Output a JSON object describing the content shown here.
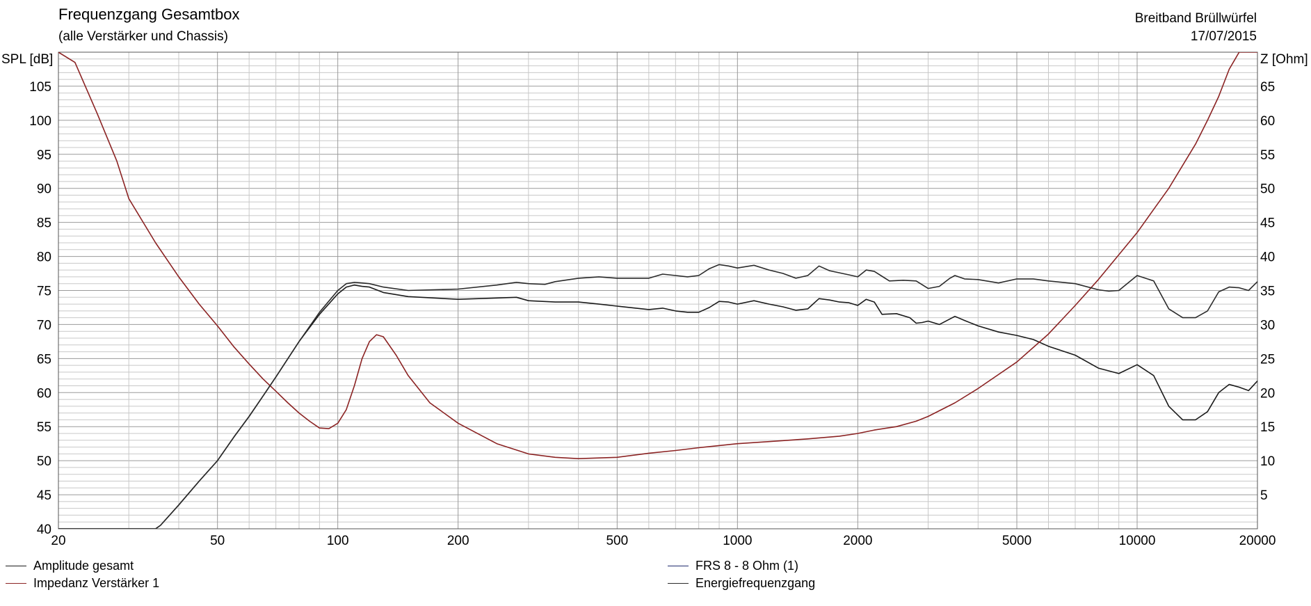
{
  "header": {
    "title": "Frequenzgang Gesamtbox",
    "subtitle": "(alle Verstärker und Chassis)",
    "project": "Breitband Brüllwürfel",
    "date": "17/07/2015"
  },
  "colors": {
    "amplitude": "#1a1a1a",
    "impedance": "#8b2323",
    "frs": "#1e2a6e",
    "energy": "#2a2a2a",
    "grid_major": "#9a9a9a",
    "grid_minor": "#c8c8c8"
  },
  "chart_data": {
    "type": "line",
    "title": "Frequenzgang Gesamtbox",
    "subtitle": "(alle Verstärker und Chassis)",
    "xlabel": "",
    "ylabel": "SPL [dB]",
    "y2label": "Z [Ohm]",
    "xscale": "log",
    "xlim": [
      20,
      20000
    ],
    "ylim": [
      40,
      110
    ],
    "y2lim": [
      0,
      70
    ],
    "grid": true,
    "legend_position": "bottom",
    "x_ticks": [
      "20",
      "50",
      "100",
      "200",
      "500",
      "1000",
      "2000",
      "5000",
      "10000",
      "20000"
    ],
    "y_ticks": [
      "40",
      "45",
      "50",
      "55",
      "60",
      "65",
      "70",
      "75",
      "80",
      "85",
      "90",
      "95",
      "100",
      "105"
    ],
    "y2_ticks": [
      "5",
      "10",
      "15",
      "20",
      "25",
      "30",
      "35",
      "40",
      "45",
      "50",
      "55",
      "60",
      "65"
    ],
    "series": [
      {
        "name": "Amplitude gesamt",
        "axis": "left",
        "x": [
          20,
          35,
          36,
          40,
          45,
          50,
          55,
          60,
          65,
          70,
          80,
          90,
          100,
          105,
          110,
          115,
          120,
          130,
          150,
          200,
          250,
          280,
          300,
          350,
          400,
          450,
          500,
          600,
          650,
          700,
          750,
          800,
          850,
          900,
          950,
          1000,
          1100,
          1200,
          1300,
          1400,
          1500,
          1600,
          1700,
          1800,
          1900,
          2000,
          2100,
          2200,
          2300,
          2500,
          2700,
          2800,
          2900,
          3000,
          3200,
          3500,
          3700,
          4000,
          4500,
          5000,
          5500,
          6000,
          7000,
          8000,
          9000,
          10000,
          11000,
          12000,
          13000,
          14000,
          15000,
          16000,
          17000,
          18000,
          19000,
          20000
        ],
        "y": [
          40,
          40,
          40.5,
          43.5,
          47,
          50,
          53.5,
          56.5,
          59.5,
          62.3,
          67.5,
          71.5,
          74.5,
          75.5,
          75.8,
          75.6,
          75.5,
          74.7,
          74.1,
          73.7,
          73.9,
          74.0,
          73.5,
          73.3,
          73.3,
          73.0,
          72.7,
          72.2,
          72.4,
          72.0,
          71.8,
          71.8,
          72.5,
          73.4,
          73.3,
          73.0,
          73.5,
          73.0,
          72.6,
          72.1,
          72.3,
          73.8,
          73.6,
          73.3,
          73.2,
          72.8,
          73.7,
          73.3,
          71.5,
          71.6,
          71.0,
          70.2,
          70.3,
          70.5,
          70.0,
          71.2,
          70.6,
          69.8,
          68.9,
          68.4,
          67.8,
          66.8,
          65.5,
          63.6,
          62.8,
          64.1,
          62.5,
          58.0,
          56.0,
          56.0,
          57.2,
          60.0,
          61.2,
          60.8,
          60.3,
          61.7
        ]
      },
      {
        "name": "Impedanz Verstärker 1",
        "axis": "right",
        "x": [
          20,
          22,
          25,
          28,
          30,
          35,
          40,
          45,
          50,
          55,
          60,
          65,
          70,
          75,
          80,
          85,
          90,
          95,
          100,
          105,
          110,
          115,
          120,
          125,
          130,
          140,
          150,
          170,
          200,
          250,
          300,
          350,
          400,
          500,
          600,
          700,
          800,
          1000,
          1200,
          1500,
          1800,
          2000,
          2200,
          2500,
          2800,
          3000,
          3500,
          4000,
          5000,
          6000,
          7000,
          8000,
          10000,
          12000,
          14000,
          15000,
          16000,
          17000,
          18000,
          20000
        ],
        "y": [
          70,
          68.5,
          61,
          54,
          48.5,
          42,
          37,
          33,
          29.8,
          26.7,
          24.2,
          22,
          20.2,
          18.5,
          17,
          15.8,
          14.8,
          14.7,
          15.5,
          17.5,
          21,
          25,
          27.5,
          28.5,
          28.2,
          25.5,
          22.5,
          18.5,
          15.5,
          12.5,
          11,
          10.5,
          10.3,
          10.5,
          11.1,
          11.5,
          11.9,
          12.5,
          12.8,
          13.2,
          13.6,
          14.0,
          14.5,
          15.0,
          15.8,
          16.5,
          18.5,
          20.6,
          24.5,
          28.6,
          32.8,
          36.6,
          43.5,
          50,
          56.5,
          60,
          63.5,
          67.5,
          70,
          70
        ]
      },
      {
        "name": "FRS 8 - 8 Ohm (1)",
        "axis": "left",
        "x": [],
        "y": []
      },
      {
        "name": "Energiefrequenzgang",
        "axis": "left",
        "x": [
          20,
          35,
          36,
          40,
          45,
          50,
          55,
          60,
          65,
          70,
          80,
          90,
          100,
          105,
          110,
          115,
          120,
          130,
          150,
          200,
          250,
          280,
          300,
          330,
          350,
          400,
          450,
          500,
          600,
          650,
          700,
          750,
          800,
          850,
          900,
          950,
          1000,
          1100,
          1200,
          1300,
          1400,
          1500,
          1600,
          1700,
          1800,
          1900,
          2000,
          2100,
          2200,
          2400,
          2600,
          2800,
          3000,
          3200,
          3400,
          3500,
          3700,
          4000,
          4500,
          5000,
          5500,
          6000,
          7000,
          8000,
          8500,
          9000,
          10000,
          11000,
          12000,
          13000,
          14000,
          15000,
          16000,
          17000,
          18000,
          19000,
          20000
        ],
        "y": [
          40,
          40,
          40.5,
          43.5,
          47,
          50,
          53.5,
          56.5,
          59.5,
          62.3,
          67.5,
          71.8,
          75.0,
          76.0,
          76.2,
          76.1,
          76.0,
          75.5,
          75.0,
          75.2,
          75.8,
          76.2,
          76.0,
          75.9,
          76.3,
          76.8,
          77.0,
          76.8,
          76.8,
          77.4,
          77.2,
          77.0,
          77.2,
          78.2,
          78.8,
          78.6,
          78.3,
          78.7,
          78.0,
          77.5,
          76.8,
          77.2,
          78.6,
          77.9,
          77.6,
          77.3,
          77.0,
          78.0,
          77.8,
          76.4,
          76.5,
          76.4,
          75.3,
          75.6,
          76.8,
          77.2,
          76.7,
          76.6,
          76.1,
          76.7,
          76.7,
          76.4,
          76.0,
          75.1,
          74.9,
          75.0,
          77.2,
          76.4,
          72.3,
          71.0,
          71.0,
          72.0,
          74.8,
          75.5,
          75.4,
          75.0,
          76.3
        ]
      }
    ]
  },
  "legend": {
    "items": [
      {
        "label": "Amplitude gesamt",
        "color": "#1a1a1a"
      },
      {
        "label": "Impedanz Verstärker 1",
        "color": "#8b2323"
      },
      {
        "label": "FRS 8 - 8 Ohm (1)",
        "color": "#1e2a6e"
      },
      {
        "label": "Energiefrequenzgang",
        "color": "#2a2a2a"
      }
    ]
  }
}
